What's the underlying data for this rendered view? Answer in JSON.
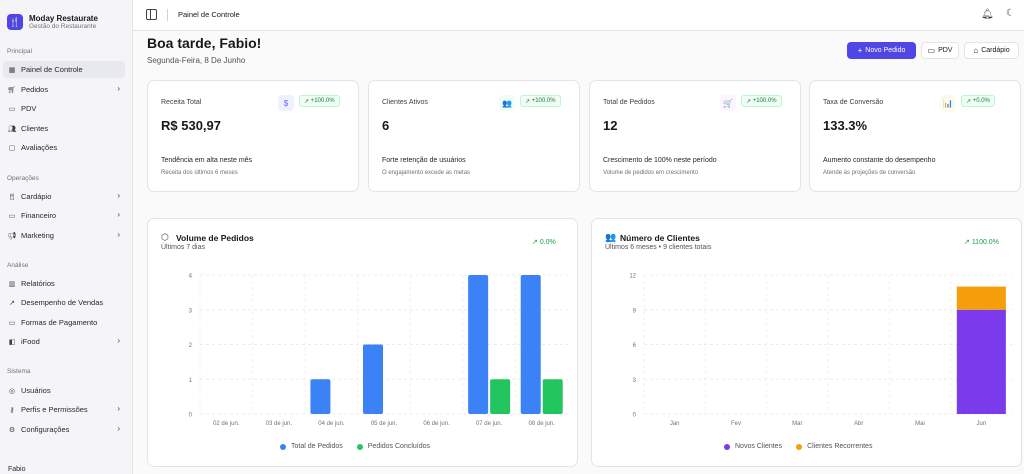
{
  "brand": {
    "name": "Moday Restaurate",
    "subtitle": "Gestão do Restaurante"
  },
  "sidebar": {
    "sections": [
      {
        "title": "Principal"
      },
      {
        "title": "Operações"
      },
      {
        "title": "Análise"
      },
      {
        "title": "Sistema"
      }
    ],
    "items": [
      {
        "label": "Painel de Controle",
        "icon": "dashboard-icon",
        "active": true
      },
      {
        "label": "Pedidos",
        "icon": "cart-icon",
        "chevron": true
      },
      {
        "label": "PDV",
        "icon": "monitor-icon"
      },
      {
        "label": "Clientes",
        "icon": "users-icon"
      },
      {
        "label": "Avaliações",
        "icon": "message-icon"
      },
      {
        "label": "Cardápio",
        "icon": "utensils-icon",
        "chevron": true
      },
      {
        "label": "Financeiro",
        "icon": "card-icon",
        "chevron": true
      },
      {
        "label": "Marketing",
        "icon": "megaphone-icon",
        "chevron": true
      },
      {
        "label": "Relatórios",
        "icon": "bar-chart-icon"
      },
      {
        "label": "Desempenho de Vendas",
        "icon": "line-chart-icon"
      },
      {
        "label": "Formas de Pagamento",
        "icon": "wallet-icon"
      },
      {
        "label": "iFood",
        "icon": "ifood-icon",
        "chevron": true
      },
      {
        "label": "Usuários",
        "icon": "user-circle-icon"
      },
      {
        "label": "Perfis e Permissões",
        "icon": "user-key-icon",
        "chevron": true
      },
      {
        "label": "Configurações",
        "icon": "gear-icon",
        "chevron": true
      }
    ],
    "user_name": "Fabio"
  },
  "header": {
    "title": "Painel de Controle"
  },
  "greeting": "Boa tarde, Fabio!",
  "date": "Segunda-Feira, 8 De Junho",
  "actions": {
    "new_order": "Novo Pedido",
    "pdv": "PDV",
    "menu": "Cardápio"
  },
  "cards": [
    {
      "label": "Receita Total",
      "value": "R$ 530,97",
      "badge": "+100.0%",
      "icon_glyph": "$",
      "icon_color": "#6366f1",
      "icon_bg": "#eef2ff",
      "desc": "Tendência em alta neste mês",
      "sub": "Receita dos últimos 6 meses"
    },
    {
      "label": "Clientes Ativos",
      "value": "6",
      "badge": "+100.0%",
      "icon_glyph": "👥",
      "icon_color": "#16a34a",
      "icon_bg": "#f0fdf4",
      "desc": "Forte retenção de usuários",
      "sub": "O engajamento excede as metas"
    },
    {
      "label": "Total de Pedidos",
      "value": "12",
      "badge": "+100.0%",
      "icon_glyph": "🛒",
      "icon_color": "#a855f7",
      "icon_bg": "#faf5ff",
      "desc": "Crescimento de 100% neste período",
      "sub": "Volume de pedidos em crescimento"
    },
    {
      "label": "Taxa de Conversão",
      "value": "133.3%",
      "badge": "+0.0%",
      "icon_glyph": "📊",
      "icon_color": "#f59e0b",
      "icon_bg": "#fffbeb",
      "desc": "Aumento constante do desempenho",
      "sub": "Atende às projeções de conversão"
    }
  ],
  "orders_panel": {
    "title": "Volume de Pedidos",
    "subtitle": "Últimos 7 dias",
    "trend": "0.0%"
  },
  "clients_panel": {
    "title": "Número de Clientes",
    "subtitle": "Últimos 6 meses • 9 clientes totais",
    "trend": "1100.0%"
  },
  "chart_data": [
    {
      "type": "bar",
      "categories": [
        "02 de jun.",
        "03 de jun.",
        "04 de jun.",
        "05 de jun.",
        "06 de jun.",
        "07 de jun.",
        "08 de jun."
      ],
      "series": [
        {
          "name": "Total de Pedidos",
          "values": [
            0,
            0,
            1,
            2,
            0,
            4,
            4
          ],
          "color": "#3b82f6"
        },
        {
          "name": "Pedidos Concluídos",
          "values": [
            0,
            0,
            0,
            0,
            0,
            1,
            1
          ],
          "color": "#22c55e"
        }
      ],
      "yticks": [
        0,
        1,
        2,
        3,
        4
      ],
      "ylim": [
        0,
        4
      ],
      "grid": true,
      "legend": "bottom"
    },
    {
      "type": "bar",
      "stacked": true,
      "categories": [
        "Jan",
        "Fev",
        "Mar",
        "Abr",
        "Mai",
        "Jun"
      ],
      "series": [
        {
          "name": "Novos Clientes",
          "values": [
            0,
            0,
            0,
            0,
            0,
            9
          ],
          "color": "#7c3aed"
        },
        {
          "name": "Clientes Recorrentes",
          "values": [
            0,
            0,
            0,
            0,
            0,
            2
          ],
          "color": "#f59e0b"
        }
      ],
      "yticks": [
        0,
        3,
        6,
        9,
        12
      ],
      "ylim": [
        0,
        12
      ],
      "grid": true,
      "legend": "bottom"
    }
  ]
}
